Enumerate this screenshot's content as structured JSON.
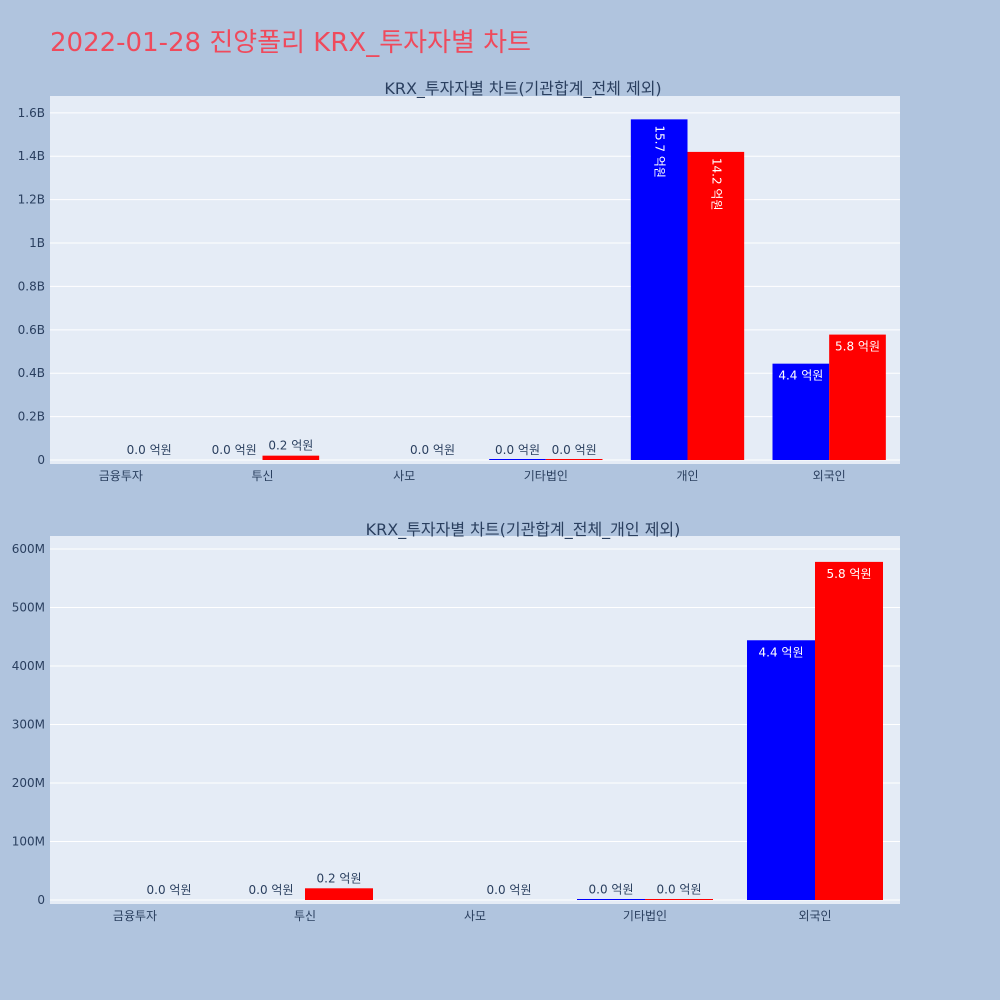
{
  "page": {
    "title": "2022-01-28 진양폴리 KRX_투자자별 차트"
  },
  "colors": {
    "background": "#b0c4de",
    "plot_bg": "#e5ecf6",
    "grid": "#ffffff",
    "buy": "#0000ff",
    "sell": "#ff0000",
    "title": "#ef4a5c",
    "text": "#2a3f5f"
  },
  "chart_data": [
    {
      "type": "bar",
      "title": "KRX_투자자별 차트(기관합계_전체 제외)",
      "categories": [
        "금융투자",
        "투신",
        "사모",
        "기타법인",
        "개인",
        "외국인"
      ],
      "ylim": [
        0,
        1650000000
      ],
      "yticks": [
        {
          "value": 0,
          "label": "0"
        },
        {
          "value": 200000000,
          "label": "0.2B"
        },
        {
          "value": 400000000,
          "label": "0.4B"
        },
        {
          "value": 600000000,
          "label": "0.6B"
        },
        {
          "value": 800000000,
          "label": "0.8B"
        },
        {
          "value": 1000000000,
          "label": "1B"
        },
        {
          "value": 1200000000,
          "label": "1.2B"
        },
        {
          "value": 1400000000,
          "label": "1.4B"
        },
        {
          "value": 1600000000,
          "label": "1.6B"
        }
      ],
      "grid": true,
      "series": [
        {
          "color": "#0000ff",
          "values": [
            0,
            0,
            0,
            1000000,
            1570000000,
            444000000
          ],
          "labels": [
            "",
            "0.0 억원",
            "",
            "0.0 억원",
            "15.7 억원",
            "4.4 억원"
          ]
        },
        {
          "color": "#ff0000",
          "values": [
            0,
            20000000,
            0,
            1000000,
            1420000000,
            578000000
          ],
          "labels": [
            "0.0 억원",
            "0.2 억원",
            "0.0 억원",
            "0.0 억원",
            "14.2 억원",
            "5.8 억원"
          ]
        }
      ]
    },
    {
      "type": "bar",
      "title": "KRX_투자자별 차트(기관합계_전체_개인 제외)",
      "categories": [
        "금융투자",
        "투신",
        "사모",
        "기타법인",
        "외국인"
      ],
      "ylim": [
        0,
        612000000
      ],
      "yticks": [
        {
          "value": 0,
          "label": "0"
        },
        {
          "value": 100000000,
          "label": "100M"
        },
        {
          "value": 200000000,
          "label": "200M"
        },
        {
          "value": 300000000,
          "label": "300M"
        },
        {
          "value": 400000000,
          "label": "400M"
        },
        {
          "value": 500000000,
          "label": "500M"
        },
        {
          "value": 600000000,
          "label": "600M"
        }
      ],
      "grid": true,
      "series": [
        {
          "color": "#0000ff",
          "values": [
            0,
            0,
            0,
            1000000,
            444000000
          ],
          "labels": [
            "",
            "0.0 억원",
            "",
            "0.0 억원",
            "4.4 억원"
          ]
        },
        {
          "color": "#ff0000",
          "values": [
            0,
            20000000,
            0,
            1000000,
            578000000
          ],
          "labels": [
            "0.0 억원",
            "0.2 억원",
            "0.0 억원",
            "0.0 억원",
            "5.8 억원"
          ]
        }
      ]
    }
  ]
}
